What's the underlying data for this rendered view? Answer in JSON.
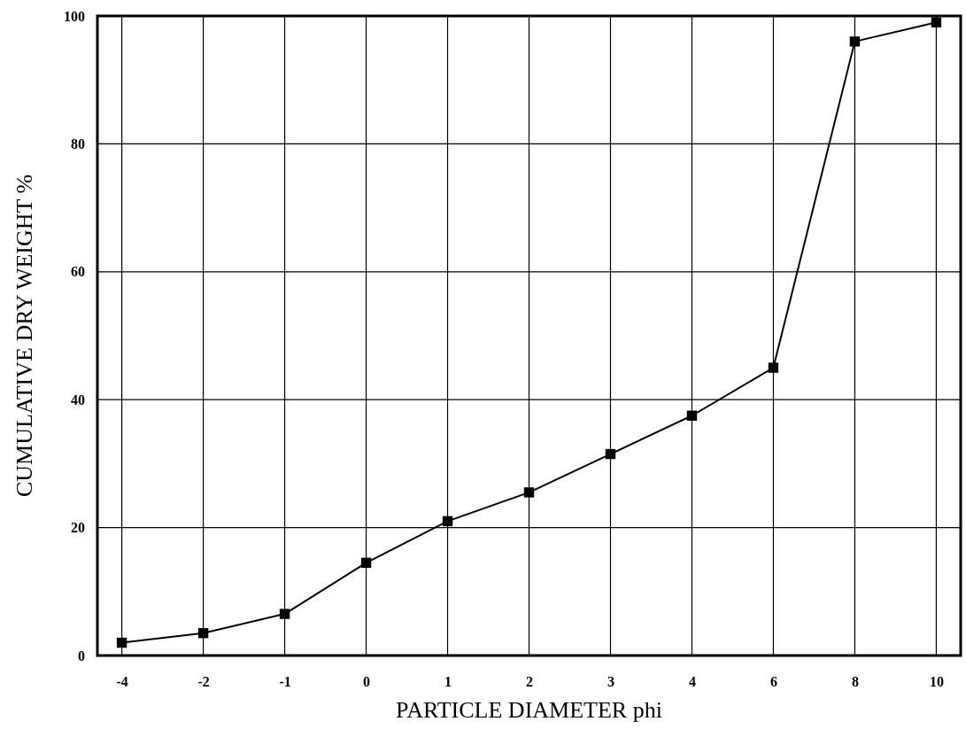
{
  "chart_data": {
    "type": "line",
    "xlabel": "PARTICLE DIAMETER  phi",
    "ylabel": "CUMULATIVE DRY WEIGHT %",
    "categories": [
      "-4",
      "-2",
      "-1",
      "0",
      "1",
      "2",
      "3",
      "4",
      "6",
      "8",
      "10"
    ],
    "series": [
      {
        "color": "#000000",
        "values": [
          2,
          3.5,
          6.5,
          14.5,
          21,
          25.5,
          31.5,
          37.5,
          45,
          96,
          99
        ]
      }
    ],
    "ylim": [
      0,
      100
    ],
    "yticks": [
      0,
      20,
      40,
      60,
      80,
      100
    ],
    "grid": true,
    "marker": "square",
    "line_style": "solid"
  }
}
